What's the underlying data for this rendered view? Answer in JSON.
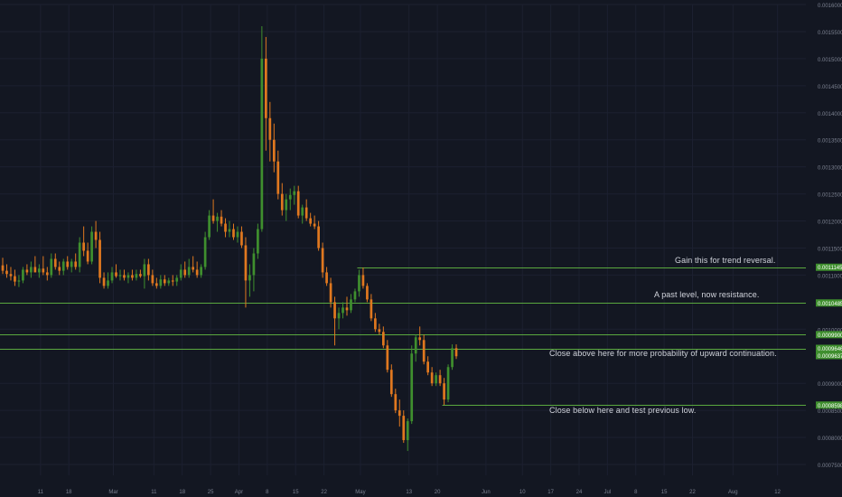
{
  "colors": {
    "background": "#131722",
    "grid": "#1c2030",
    "up_candle": "#3f8f2e",
    "down_candle": "#e0781f",
    "level_line": "#5aa83f",
    "level_label_bg": "#3f8f2e",
    "level_label_text": "#ffffff",
    "axis_text": "#7b8190",
    "annotation_text": "#d1d4dc"
  },
  "chart_data": {
    "type": "candlestick",
    "ylim": [
      0.00073,
      0.0016
    ],
    "x_start": "2019-02-01",
    "x_end": "2019-08-19",
    "y_ticks": [
      "0.0016000",
      "0.0015500",
      "0.0015000",
      "0.0014500",
      "0.0014000",
      "0.0013500",
      "0.0013000",
      "0.0012500",
      "0.0012000",
      "0.0011500",
      "0.0011000",
      "0.0010000",
      "0.0009000",
      "0.0008500",
      "0.0008000",
      "0.0007500"
    ],
    "x_ticks": [
      {
        "date": "2019-02-11",
        "label": "11"
      },
      {
        "date": "2019-02-18",
        "label": "18"
      },
      {
        "date": "2019-03-01",
        "label": "Mar"
      },
      {
        "date": "2019-03-11",
        "label": "11"
      },
      {
        "date": "2019-03-18",
        "label": "18"
      },
      {
        "date": "2019-03-25",
        "label": "25"
      },
      {
        "date": "2019-04-01",
        "label": "Apr"
      },
      {
        "date": "2019-04-08",
        "label": "8"
      },
      {
        "date": "2019-04-15",
        "label": "15"
      },
      {
        "date": "2019-04-22",
        "label": "22"
      },
      {
        "date": "2019-05-01",
        "label": "May"
      },
      {
        "date": "2019-05-13",
        "label": "13"
      },
      {
        "date": "2019-05-20",
        "label": "20"
      },
      {
        "date": "2019-06-01",
        "label": "Jun"
      },
      {
        "date": "2019-06-10",
        "label": "10"
      },
      {
        "date": "2019-06-17",
        "label": "17"
      },
      {
        "date": "2019-06-24",
        "label": "24"
      },
      {
        "date": "2019-07-01",
        "label": "Jul"
      },
      {
        "date": "2019-07-08",
        "label": "8"
      },
      {
        "date": "2019-07-15",
        "label": "15"
      },
      {
        "date": "2019-07-22",
        "label": "22"
      },
      {
        "date": "2019-08-01",
        "label": "Aug"
      },
      {
        "date": "2019-08-12",
        "label": "12"
      }
    ],
    "candles": [
      {
        "date": "2019-02-01",
        "o": 0.001118,
        "h": 0.001132,
        "l": 0.001102,
        "c": 0.001108
      },
      {
        "date": "2019-02-02",
        "o": 0.001108,
        "h": 0.00112,
        "l": 0.001095,
        "c": 0.001102
      },
      {
        "date": "2019-02-03",
        "o": 0.001102,
        "h": 0.001115,
        "l": 0.00109,
        "c": 0.001098
      },
      {
        "date": "2019-02-04",
        "o": 0.001098,
        "h": 0.00111,
        "l": 0.00108,
        "c": 0.001088
      },
      {
        "date": "2019-02-05",
        "o": 0.001088,
        "h": 0.0011,
        "l": 0.001078,
        "c": 0.00109
      },
      {
        "date": "2019-02-06",
        "o": 0.00109,
        "h": 0.001115,
        "l": 0.001085,
        "c": 0.00111
      },
      {
        "date": "2019-02-07",
        "o": 0.00111,
        "h": 0.00112,
        "l": 0.0011,
        "c": 0.001105
      },
      {
        "date": "2019-02-08",
        "o": 0.001105,
        "h": 0.001125,
        "l": 0.001095,
        "c": 0.001115
      },
      {
        "date": "2019-02-09",
        "o": 0.001115,
        "h": 0.001135,
        "l": 0.001105,
        "c": 0.001105
      },
      {
        "date": "2019-02-10",
        "o": 0.001105,
        "h": 0.00112,
        "l": 0.001095,
        "c": 0.001112
      },
      {
        "date": "2019-02-11",
        "o": 0.001112,
        "h": 0.001135,
        "l": 0.0011,
        "c": 0.001105
      },
      {
        "date": "2019-02-12",
        "o": 0.001105,
        "h": 0.001115,
        "l": 0.00109,
        "c": 0.0011
      },
      {
        "date": "2019-02-13",
        "o": 0.0011,
        "h": 0.00114,
        "l": 0.001095,
        "c": 0.00113
      },
      {
        "date": "2019-02-14",
        "o": 0.00113,
        "h": 0.00114,
        "l": 0.00111,
        "c": 0.001115
      },
      {
        "date": "2019-02-15",
        "o": 0.001115,
        "h": 0.001125,
        "l": 0.0011,
        "c": 0.001108
      },
      {
        "date": "2019-02-16",
        "o": 0.001108,
        "h": 0.00113,
        "l": 0.0011,
        "c": 0.001125
      },
      {
        "date": "2019-02-17",
        "o": 0.001125,
        "h": 0.001135,
        "l": 0.00111,
        "c": 0.001115
      },
      {
        "date": "2019-02-18",
        "o": 0.001115,
        "h": 0.00113,
        "l": 0.001105,
        "c": 0.001125
      },
      {
        "date": "2019-02-19",
        "o": 0.001125,
        "h": 0.00114,
        "l": 0.00111,
        "c": 0.001115
      },
      {
        "date": "2019-02-20",
        "o": 0.001115,
        "h": 0.00117,
        "l": 0.001105,
        "c": 0.00116
      },
      {
        "date": "2019-02-21",
        "o": 0.00116,
        "h": 0.00119,
        "l": 0.001135,
        "c": 0.001145
      },
      {
        "date": "2019-02-22",
        "o": 0.001145,
        "h": 0.00116,
        "l": 0.00112,
        "c": 0.001125
      },
      {
        "date": "2019-02-23",
        "o": 0.001125,
        "h": 0.00119,
        "l": 0.00112,
        "c": 0.00118
      },
      {
        "date": "2019-02-24",
        "o": 0.00118,
        "h": 0.0012,
        "l": 0.00115,
        "c": 0.001165
      },
      {
        "date": "2019-02-25",
        "o": 0.001165,
        "h": 0.00118,
        "l": 0.001085,
        "c": 0.001095
      },
      {
        "date": "2019-02-26",
        "o": 0.001095,
        "h": 0.001105,
        "l": 0.001075,
        "c": 0.00108
      },
      {
        "date": "2019-02-27",
        "o": 0.00108,
        "h": 0.001105,
        "l": 0.001075,
        "c": 0.00109
      },
      {
        "date": "2019-02-28",
        "o": 0.00109,
        "h": 0.001115,
        "l": 0.001085,
        "c": 0.001105
      },
      {
        "date": "2019-03-01",
        "o": 0.001105,
        "h": 0.00112,
        "l": 0.001095,
        "c": 0.001098
      },
      {
        "date": "2019-03-02",
        "o": 0.001098,
        "h": 0.00111,
        "l": 0.00109,
        "c": 0.0011
      },
      {
        "date": "2019-03-03",
        "o": 0.0011,
        "h": 0.00111,
        "l": 0.00109,
        "c": 0.001095
      },
      {
        "date": "2019-03-04",
        "o": 0.001095,
        "h": 0.001105,
        "l": 0.001085,
        "c": 0.0011
      },
      {
        "date": "2019-03-05",
        "o": 0.0011,
        "h": 0.00111,
        "l": 0.00109,
        "c": 0.001095
      },
      {
        "date": "2019-03-06",
        "o": 0.001095,
        "h": 0.00111,
        "l": 0.00109,
        "c": 0.001102
      },
      {
        "date": "2019-03-07",
        "o": 0.001102,
        "h": 0.00111,
        "l": 0.001095,
        "c": 0.001098
      },
      {
        "date": "2019-03-08",
        "o": 0.001098,
        "h": 0.00113,
        "l": 0.001075,
        "c": 0.00112
      },
      {
        "date": "2019-03-09",
        "o": 0.00112,
        "h": 0.00113,
        "l": 0.00109,
        "c": 0.0011
      },
      {
        "date": "2019-03-10",
        "o": 0.0011,
        "h": 0.00111,
        "l": 0.00108,
        "c": 0.001085
      },
      {
        "date": "2019-03-11",
        "o": 0.001085,
        "h": 0.001095,
        "l": 0.001075,
        "c": 0.00108
      },
      {
        "date": "2019-03-12",
        "o": 0.00108,
        "h": 0.0011,
        "l": 0.001075,
        "c": 0.001092
      },
      {
        "date": "2019-03-13",
        "o": 0.001092,
        "h": 0.0011,
        "l": 0.00108,
        "c": 0.001085
      },
      {
        "date": "2019-03-14",
        "o": 0.001085,
        "h": 0.001095,
        "l": 0.00108,
        "c": 0.00109
      },
      {
        "date": "2019-03-15",
        "o": 0.00109,
        "h": 0.0011,
        "l": 0.00108,
        "c": 0.001088
      },
      {
        "date": "2019-03-16",
        "o": 0.001088,
        "h": 0.0011,
        "l": 0.00108,
        "c": 0.001095
      },
      {
        "date": "2019-03-17",
        "o": 0.001095,
        "h": 0.00112,
        "l": 0.00109,
        "c": 0.00111
      },
      {
        "date": "2019-03-18",
        "o": 0.00111,
        "h": 0.001125,
        "l": 0.001095,
        "c": 0.0011
      },
      {
        "date": "2019-03-19",
        "o": 0.0011,
        "h": 0.00113,
        "l": 0.001095,
        "c": 0.001115
      },
      {
        "date": "2019-03-20",
        "o": 0.001115,
        "h": 0.001135,
        "l": 0.001105,
        "c": 0.00111
      },
      {
        "date": "2019-03-21",
        "o": 0.00111,
        "h": 0.001125,
        "l": 0.001095,
        "c": 0.0011
      },
      {
        "date": "2019-03-22",
        "o": 0.0011,
        "h": 0.00112,
        "l": 0.001095,
        "c": 0.001115
      },
      {
        "date": "2019-03-23",
        "o": 0.001115,
        "h": 0.00118,
        "l": 0.00111,
        "c": 0.00117
      },
      {
        "date": "2019-03-24",
        "o": 0.00117,
        "h": 0.00122,
        "l": 0.001165,
        "c": 0.00121
      },
      {
        "date": "2019-03-25",
        "o": 0.00121,
        "h": 0.00124,
        "l": 0.001195,
        "c": 0.0012
      },
      {
        "date": "2019-03-26",
        "o": 0.0012,
        "h": 0.001215,
        "l": 0.00118,
        "c": 0.001208
      },
      {
        "date": "2019-03-27",
        "o": 0.001208,
        "h": 0.00122,
        "l": 0.00119,
        "c": 0.001195
      },
      {
        "date": "2019-03-28",
        "o": 0.001195,
        "h": 0.001205,
        "l": 0.00117,
        "c": 0.00118
      },
      {
        "date": "2019-03-29",
        "o": 0.00118,
        "h": 0.0012,
        "l": 0.00117,
        "c": 0.001185
      },
      {
        "date": "2019-03-30",
        "o": 0.001185,
        "h": 0.001195,
        "l": 0.001165,
        "c": 0.00117
      },
      {
        "date": "2019-03-31",
        "o": 0.00117,
        "h": 0.00119,
        "l": 0.00116,
        "c": 0.00118
      },
      {
        "date": "2019-04-01",
        "o": 0.00118,
        "h": 0.00119,
        "l": 0.00115,
        "c": 0.001155
      },
      {
        "date": "2019-04-02",
        "o": 0.001155,
        "h": 0.00117,
        "l": 0.00104,
        "c": 0.00109
      },
      {
        "date": "2019-04-03",
        "o": 0.00109,
        "h": 0.00112,
        "l": 0.00106,
        "c": 0.0011
      },
      {
        "date": "2019-04-04",
        "o": 0.0011,
        "h": 0.00115,
        "l": 0.00107,
        "c": 0.00114
      },
      {
        "date": "2019-04-05",
        "o": 0.00114,
        "h": 0.001195,
        "l": 0.00113,
        "c": 0.001185
      },
      {
        "date": "2019-04-06",
        "o": 0.001185,
        "h": 0.00156,
        "l": 0.00118,
        "c": 0.0015
      },
      {
        "date": "2019-04-07",
        "o": 0.0015,
        "h": 0.00154,
        "l": 0.00133,
        "c": 0.00139
      },
      {
        "date": "2019-04-08",
        "o": 0.00139,
        "h": 0.00142,
        "l": 0.00131,
        "c": 0.00135
      },
      {
        "date": "2019-04-09",
        "o": 0.00135,
        "h": 0.00138,
        "l": 0.00129,
        "c": 0.00131
      },
      {
        "date": "2019-04-10",
        "o": 0.00131,
        "h": 0.00133,
        "l": 0.00124,
        "c": 0.00125
      },
      {
        "date": "2019-04-11",
        "o": 0.00125,
        "h": 0.00127,
        "l": 0.00121,
        "c": 0.00122
      },
      {
        "date": "2019-04-12",
        "o": 0.00122,
        "h": 0.00125,
        "l": 0.0012,
        "c": 0.00124
      },
      {
        "date": "2019-04-13",
        "o": 0.00124,
        "h": 0.00126,
        "l": 0.00122,
        "c": 0.001248
      },
      {
        "date": "2019-04-14",
        "o": 0.001248,
        "h": 0.001265,
        "l": 0.00123,
        "c": 0.001255
      },
      {
        "date": "2019-04-15",
        "o": 0.001255,
        "h": 0.001265,
        "l": 0.001205,
        "c": 0.00121
      },
      {
        "date": "2019-04-16",
        "o": 0.00121,
        "h": 0.00123,
        "l": 0.001195,
        "c": 0.001225
      },
      {
        "date": "2019-04-17",
        "o": 0.001225,
        "h": 0.00124,
        "l": 0.0012,
        "c": 0.001205
      },
      {
        "date": "2019-04-18",
        "o": 0.001205,
        "h": 0.001215,
        "l": 0.00119,
        "c": 0.001195
      },
      {
        "date": "2019-04-19",
        "o": 0.001195,
        "h": 0.00121,
        "l": 0.001185,
        "c": 0.00119
      },
      {
        "date": "2019-04-20",
        "o": 0.00119,
        "h": 0.0012,
        "l": 0.001145,
        "c": 0.00115
      },
      {
        "date": "2019-04-21",
        "o": 0.00115,
        "h": 0.00116,
        "l": 0.001095,
        "c": 0.001105
      },
      {
        "date": "2019-04-22",
        "o": 0.001105,
        "h": 0.001115,
        "l": 0.00108,
        "c": 0.001085
      },
      {
        "date": "2019-04-23",
        "o": 0.001085,
        "h": 0.001095,
        "l": 0.00104,
        "c": 0.00105
      },
      {
        "date": "2019-04-24",
        "o": 0.00105,
        "h": 0.00106,
        "l": 0.00097,
        "c": 0.00102
      },
      {
        "date": "2019-04-25",
        "o": 0.00102,
        "h": 0.00104,
        "l": 0.001,
        "c": 0.00103
      },
      {
        "date": "2019-04-26",
        "o": 0.00103,
        "h": 0.00105,
        "l": 0.00102,
        "c": 0.00104
      },
      {
        "date": "2019-04-27",
        "o": 0.00104,
        "h": 0.00106,
        "l": 0.001025,
        "c": 0.001035
      },
      {
        "date": "2019-04-28",
        "o": 0.001035,
        "h": 0.001065,
        "l": 0.00103,
        "c": 0.001055
      },
      {
        "date": "2019-04-29",
        "o": 0.001055,
        "h": 0.001075,
        "l": 0.00105,
        "c": 0.00107
      },
      {
        "date": "2019-04-30",
        "o": 0.00107,
        "h": 0.00111,
        "l": 0.00106,
        "c": 0.0011
      },
      {
        "date": "2019-05-01",
        "o": 0.0011,
        "h": 0.001114,
        "l": 0.001075,
        "c": 0.00108
      },
      {
        "date": "2019-05-02",
        "o": 0.00108,
        "h": 0.001085,
        "l": 0.00105,
        "c": 0.001055
      },
      {
        "date": "2019-05-03",
        "o": 0.001055,
        "h": 0.001065,
        "l": 0.001015,
        "c": 0.00102
      },
      {
        "date": "2019-05-04",
        "o": 0.00102,
        "h": 0.00103,
        "l": 0.000995,
        "c": 0.001
      },
      {
        "date": "2019-05-05",
        "o": 0.001,
        "h": 0.00101,
        "l": 0.00099,
        "c": 0.000995
      },
      {
        "date": "2019-05-06",
        "o": 0.000995,
        "h": 0.001005,
        "l": 0.000965,
        "c": 0.00097
      },
      {
        "date": "2019-05-07",
        "o": 0.00097,
        "h": 0.00098,
        "l": 0.00092,
        "c": 0.000925
      },
      {
        "date": "2019-05-08",
        "o": 0.000925,
        "h": 0.000935,
        "l": 0.000875,
        "c": 0.00088
      },
      {
        "date": "2019-05-09",
        "o": 0.00088,
        "h": 0.00089,
        "l": 0.000845,
        "c": 0.00085
      },
      {
        "date": "2019-05-10",
        "o": 0.00085,
        "h": 0.00087,
        "l": 0.00082,
        "c": 0.00084
      },
      {
        "date": "2019-05-11",
        "o": 0.00084,
        "h": 0.00085,
        "l": 0.00079,
        "c": 0.000795
      },
      {
        "date": "2019-05-12",
        "o": 0.000795,
        "h": 0.000835,
        "l": 0.000775,
        "c": 0.00083
      },
      {
        "date": "2019-05-13",
        "o": 0.00083,
        "h": 0.00097,
        "l": 0.000825,
        "c": 0.000955
      },
      {
        "date": "2019-05-14",
        "o": 0.000955,
        "h": 0.00099,
        "l": 0.00094,
        "c": 0.000985
      },
      {
        "date": "2019-05-15",
        "o": 0.000985,
        "h": 0.001005,
        "l": 0.00097,
        "c": 0.00098
      },
      {
        "date": "2019-05-16",
        "o": 0.00098,
        "h": 0.00099,
        "l": 0.000935,
        "c": 0.00094
      },
      {
        "date": "2019-05-17",
        "o": 0.00094,
        "h": 0.00095,
        "l": 0.000915,
        "c": 0.00092
      },
      {
        "date": "2019-05-18",
        "o": 0.00092,
        "h": 0.00093,
        "l": 0.000895,
        "c": 0.0009
      },
      {
        "date": "2019-05-19",
        "o": 0.0009,
        "h": 0.00092,
        "l": 0.000895,
        "c": 0.000915
      },
      {
        "date": "2019-05-20",
        "o": 0.000915,
        "h": 0.000925,
        "l": 0.000895,
        "c": 0.0009
      },
      {
        "date": "2019-05-21",
        "o": 0.0009,
        "h": 0.00091,
        "l": 0.00086,
        "c": 0.00087
      },
      {
        "date": "2019-05-22",
        "o": 0.00087,
        "h": 0.000935,
        "l": 0.000865,
        "c": 0.00093
      },
      {
        "date": "2019-05-23",
        "o": 0.00093,
        "h": 0.000972,
        "l": 0.000925,
        "c": 0.000965
      },
      {
        "date": "2019-05-24",
        "o": 0.000965,
        "h": 0.000972,
        "l": 0.000945,
        "c": 0.00095
      }
    ],
    "levels": [
      {
        "value": 0.0011145,
        "label": "0.0011145",
        "start": "2019-04-30",
        "full_width": false,
        "labeled": true
      },
      {
        "value": 0.0010485,
        "label": "0.0010485",
        "start": "2019-02-01",
        "full_width": true,
        "labeled": true
      },
      {
        "value": 0.00099,
        "label": "0.0009900",
        "start": "2019-02-01",
        "full_width": true,
        "labeled": true
      },
      {
        "value": 0.0009646,
        "label": "0.0009646",
        "start": "2019-05-23",
        "full_width": false,
        "labeled": true
      },
      {
        "value": 0.0009637,
        "label": "0.0009637",
        "start": "2019-02-01",
        "full_width": true,
        "labeled": true
      },
      {
        "value": 0.0008598,
        "label": "0.0008598",
        "start": "2019-05-21",
        "full_width": false,
        "labeled": true
      }
    ]
  },
  "annotations": {
    "trend_reversal": "Gain this for trend reversal.",
    "past_level": "A past level, now resistance.",
    "close_above": "Close above here for more probability of upward continuation.",
    "close_below": "Close below here and test previous low."
  }
}
